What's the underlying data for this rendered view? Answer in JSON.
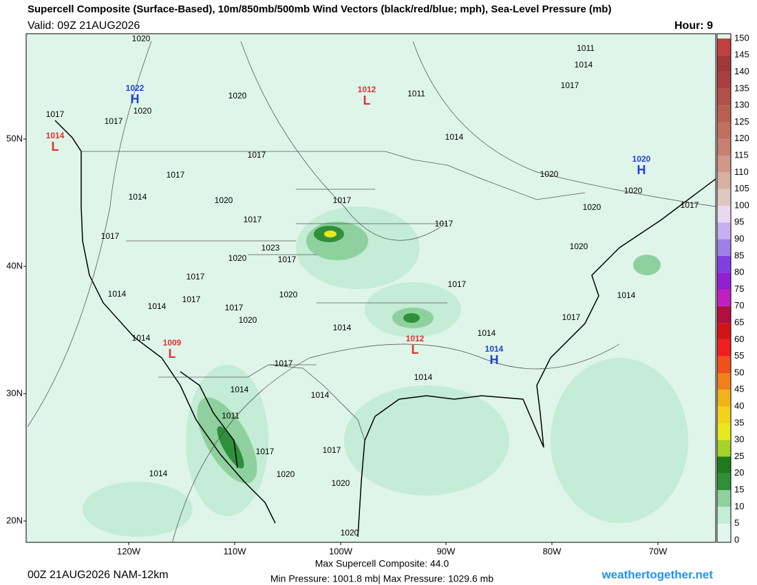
{
  "header": {
    "title": "Supercell Composite (Surface-Based), 10m/850mb/500mb Wind Vectors (black/red/blue; mph), Sea-Level Pressure (mb)",
    "valid": "Valid: 09Z 21AUG2026",
    "hour": "Hour: 9"
  },
  "map": {
    "lat_labels": [
      "50N",
      "40N",
      "30N",
      "20N"
    ],
    "lon_labels": [
      "120W",
      "110W",
      "100W",
      "90W",
      "80W",
      "70W"
    ],
    "isobar_labels": [
      1020,
      1011,
      1014,
      1017,
      1011,
      1020,
      1020,
      1017,
      1017,
      1014,
      1017,
      1020,
      1017,
      1020,
      1014,
      1020,
      1017,
      1017,
      1020,
      1017,
      1017,
      1017,
      1023,
      1020,
      1020,
      1017,
      1017,
      1017,
      1014,
      1020,
      1014,
      1017,
      1014,
      1017,
      1020,
      1017,
      1014,
      1014,
      1014,
      1017,
      1014,
      1014,
      1014,
      1011,
      1017,
      1017,
      1020,
      1014,
      1020,
      1020
    ],
    "highs_lows": [
      {
        "pressure": 1022,
        "letter": "H",
        "color": "#1f3fd6"
      },
      {
        "pressure": 1012,
        "letter": "L",
        "color": "#e03030"
      },
      {
        "pressure": 1014,
        "letter": "L",
        "color": "#e03030"
      },
      {
        "pressure": 1020,
        "letter": "H",
        "color": "#1f3fd6"
      },
      {
        "pressure": 1009,
        "letter": "L",
        "color": "#e03030"
      },
      {
        "pressure": 1012,
        "letter": "L",
        "color": "#e03030"
      },
      {
        "pressure": 1014,
        "letter": "H",
        "color": "#1f3fd6"
      }
    ]
  },
  "colorbar": {
    "ticks": [
      0,
      5,
      10,
      15,
      20,
      25,
      30,
      35,
      40,
      45,
      50,
      55,
      60,
      65,
      70,
      75,
      80,
      85,
      90,
      95,
      100,
      105,
      110,
      115,
      120,
      125,
      130,
      135,
      140,
      145,
      150
    ],
    "colors": [
      "#e2f6ee",
      "#c4ecd6",
      "#8fd19e",
      "#2f8f3a",
      "#1f7a1f",
      "#a6d22a",
      "#e8e81e",
      "#f2d21a",
      "#f2b21a",
      "#f0801a",
      "#f0501a",
      "#f01e1e",
      "#d21414",
      "#b01040",
      "#c020c0",
      "#9020d0",
      "#8040e0",
      "#a080e8",
      "#c8b0f0",
      "#e8d8f0",
      "#e0c8c0",
      "#d8b0a0",
      "#d09888",
      "#c88070",
      "#c07060",
      "#b86050",
      "#b05048",
      "#a84040",
      "#a03838",
      "#c04040"
    ]
  },
  "footer": {
    "run": "00Z 21AUG2026 NAM-12km",
    "max_composite": "Max Supercell Composite:  44.0",
    "pressure_range": "Min Pressure: 1001.8 mb| Max Pressure: 1029.6 mb",
    "site": "weathertogether.net"
  }
}
